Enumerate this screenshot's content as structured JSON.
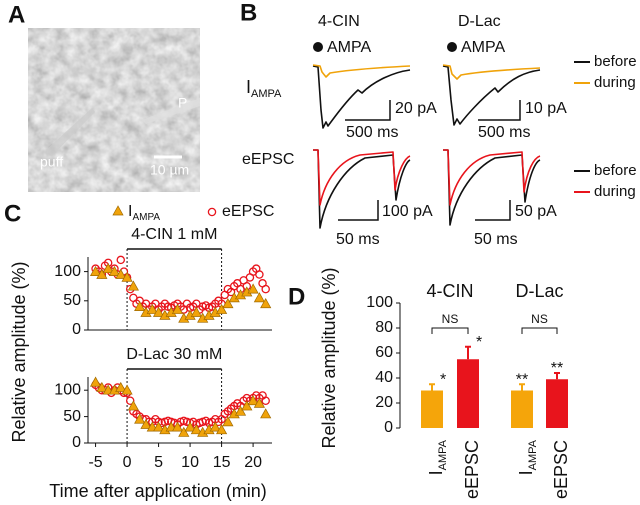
{
  "panel_labels": [
    "A",
    "B",
    "C",
    "D"
  ],
  "panel_a": {
    "labels": [
      "puff",
      "P"
    ],
    "scale_bar": "10 µm"
  },
  "panel_b": {
    "columns": [
      "4-CIN",
      "D-Lac"
    ],
    "stimulus": "AMPA",
    "rows": [
      {
        "label": "I",
        "label_sub": "AMPA",
        "scale_bars": [
          [
            "20 pA",
            "500 ms"
          ],
          [
            "10 pA",
            "500 ms"
          ]
        ],
        "legend": [
          "before",
          "during"
        ],
        "colors": [
          "#111111",
          "#f0a30a"
        ]
      },
      {
        "label": "eEPSC",
        "scale_bars": [
          [
            "100 pA",
            "50 ms"
          ],
          [
            "50 pA",
            "50 ms"
          ]
        ],
        "legend": [
          "before",
          "during"
        ],
        "colors": [
          "#111111",
          "#e8141c"
        ]
      }
    ]
  },
  "chart_data": [
    {
      "type": "scatter",
      "annotation": "4-CIN 1 mM",
      "application": [
        0,
        15
      ],
      "ylabel": "Relative amplitude (%)",
      "xlim": [
        -6.2,
        23
      ],
      "ylim": [
        0,
        125
      ],
      "yticks": [
        0,
        50,
        100
      ],
      "series": [
        {
          "name": "I",
          "name_sub": "AMPA",
          "marker": "triangle",
          "color": "#f0a30a",
          "x": [
            -5,
            -4,
            -3,
            -2,
            -1,
            0,
            1,
            2,
            3,
            4,
            5,
            6,
            7,
            8,
            9,
            10,
            11,
            12,
            13,
            14,
            15,
            16,
            17,
            18,
            19,
            20,
            21,
            22
          ],
          "values": [
            100,
            95,
            105,
            100,
            95,
            90,
            75,
            40,
            30,
            35,
            30,
            25,
            30,
            35,
            20,
            25,
            30,
            20,
            25,
            30,
            35,
            45,
            55,
            60,
            65,
            70,
            55,
            45
          ]
        },
        {
          "name": "eEPSC",
          "marker": "circle",
          "color": "#e8141c",
          "x": [
            -5,
            -4.5,
            -4,
            -3.5,
            -3,
            -2.5,
            -2,
            -1.5,
            -1,
            -0.5,
            0,
            0.5,
            1,
            1.5,
            2,
            2.5,
            3,
            3.5,
            4,
            4.5,
            5,
            5.5,
            6,
            6.5,
            7,
            7.5,
            8,
            8.5,
            9,
            9.5,
            10,
            10.5,
            11,
            11.5,
            12,
            12.5,
            13,
            13.5,
            14,
            14.5,
            15,
            15.5,
            16,
            16.5,
            17,
            17.5,
            18,
            18.5,
            19,
            19.5,
            20,
            20.5,
            21,
            21.5,
            22
          ],
          "values": [
            105,
            100,
            95,
            110,
            115,
            100,
            105,
            95,
            120,
            100,
            90,
            70,
            55,
            45,
            50,
            40,
            45,
            35,
            40,
            45,
            35,
            40,
            45,
            40,
            38,
            42,
            45,
            40,
            35,
            45,
            38,
            40,
            45,
            35,
            40,
            42,
            38,
            40,
            45,
            50,
            45,
            60,
            70,
            65,
            75,
            80,
            70,
            85,
            75,
            90,
            100,
            105,
            95,
            80,
            70
          ]
        }
      ]
    },
    {
      "type": "scatter",
      "annotation": "D-Lac 30 mM",
      "application": [
        0,
        15
      ],
      "xlabel": "Time after application (min)",
      "xlim": [
        -6.2,
        23
      ],
      "ylim": [
        0,
        125
      ],
      "yticks": [
        0,
        50,
        100
      ],
      "xticks": [
        -5,
        0,
        5,
        10,
        15,
        20
      ],
      "series": [
        {
          "marker": "triangle",
          "color": "#f0a30a",
          "x": [
            -5,
            -4,
            -3,
            -2,
            -1,
            0,
            1,
            2,
            3,
            4,
            5,
            6,
            7,
            8,
            9,
            10,
            11,
            12,
            13,
            14,
            15,
            16,
            17,
            18,
            19,
            20,
            21,
            22
          ],
          "values": [
            115,
            105,
            100,
            100,
            105,
            100,
            70,
            45,
            35,
            30,
            30,
            25,
            30,
            30,
            20,
            30,
            25,
            20,
            25,
            30,
            25,
            40,
            55,
            60,
            70,
            80,
            75,
            55
          ]
        },
        {
          "marker": "circle",
          "color": "#e8141c",
          "x": [
            -5,
            -4.5,
            -4,
            -3.5,
            -3,
            -2.5,
            -2,
            -1.5,
            -1,
            -0.5,
            0,
            0.5,
            1,
            1.5,
            2,
            2.5,
            3,
            3.5,
            4,
            4.5,
            5,
            5.5,
            6,
            6.5,
            7,
            7.5,
            8,
            8.5,
            9,
            9.5,
            10,
            10.5,
            11,
            11.5,
            12,
            12.5,
            13,
            13.5,
            14,
            14.5,
            15,
            15.5,
            16,
            16.5,
            17,
            17.5,
            18,
            18.5,
            19,
            19.5,
            20,
            20.5,
            21,
            21.5,
            22
          ],
          "values": [
            110,
            105,
            100,
            100,
            105,
            95,
            100,
            105,
            100,
            95,
            95,
            80,
            60,
            55,
            50,
            45,
            45,
            40,
            40,
            45,
            40,
            38,
            40,
            42,
            40,
            38,
            35,
            40,
            42,
            40,
            38,
            40,
            35,
            38,
            40,
            42,
            38,
            40,
            45,
            40,
            45,
            55,
            60,
            65,
            70,
            75,
            70,
            80,
            85,
            80,
            85,
            90,
            85,
            90,
            80
          ]
        }
      ]
    },
    {
      "type": "bar",
      "ylabel": "Relative amplitude (%)",
      "groups": [
        "4-CIN",
        "D-Lac"
      ],
      "categories": [
        "I",
        "eEPSC",
        "I",
        "eEPSC"
      ],
      "category_subscripts": [
        "AMPA",
        null,
        "AMPA",
        null
      ],
      "values": [
        30,
        55,
        30,
        39
      ],
      "errors": [
        5,
        10,
        5,
        5
      ],
      "colors": [
        "#f5a50a",
        "#e8141c",
        "#f5a50a",
        "#e8141c"
      ],
      "significance": [
        "*",
        "*",
        "**",
        "**"
      ],
      "comparisons": [
        "NS",
        "NS"
      ],
      "ylim": [
        0,
        100
      ],
      "yticks": [
        0,
        20,
        40,
        60,
        80,
        100
      ]
    }
  ]
}
